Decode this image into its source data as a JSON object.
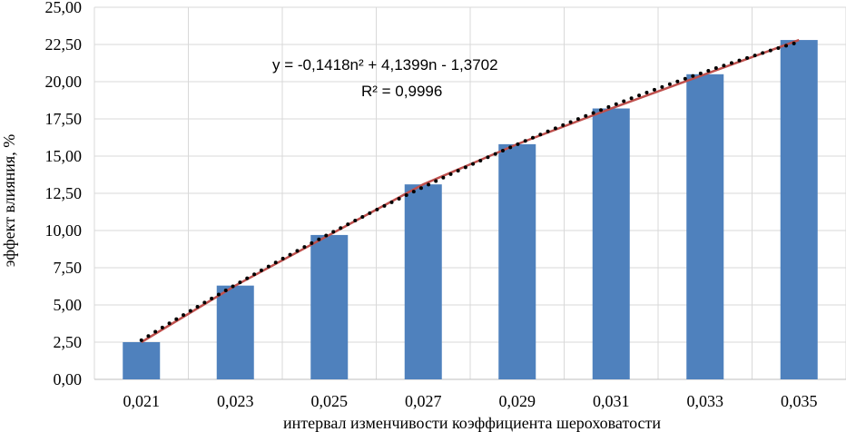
{
  "chart_data": {
    "type": "bar",
    "categories": [
      "0,021",
      "0,023",
      "0,025",
      "0,027",
      "0,029",
      "0,031",
      "0,033",
      "0,035"
    ],
    "values": [
      2.5,
      6.3,
      9.7,
      13.1,
      15.8,
      18.2,
      20.5,
      22.8
    ],
    "xlabel": "интервал изменчивости коэффициента шероховатости",
    "ylabel": "эффект влияния, %",
    "ylim": [
      0,
      25
    ],
    "yticks": [
      "0,00",
      "2,50",
      "5,00",
      "7,50",
      "10,00",
      "12,50",
      "15,00",
      "17,50",
      "20,00",
      "22,50",
      "25,00"
    ],
    "grid": true,
    "bar_color": "#4f81bd",
    "line_color": "#c0504d",
    "trendline": {
      "type": "polynomial",
      "coefficients": [
        -0.1418,
        4.1399,
        -1.3702
      ],
      "equation": "y = -0,1418n² + 4,1399n - 1,3702",
      "r_squared": "R² = 0,9996",
      "color": "#000000"
    }
  }
}
